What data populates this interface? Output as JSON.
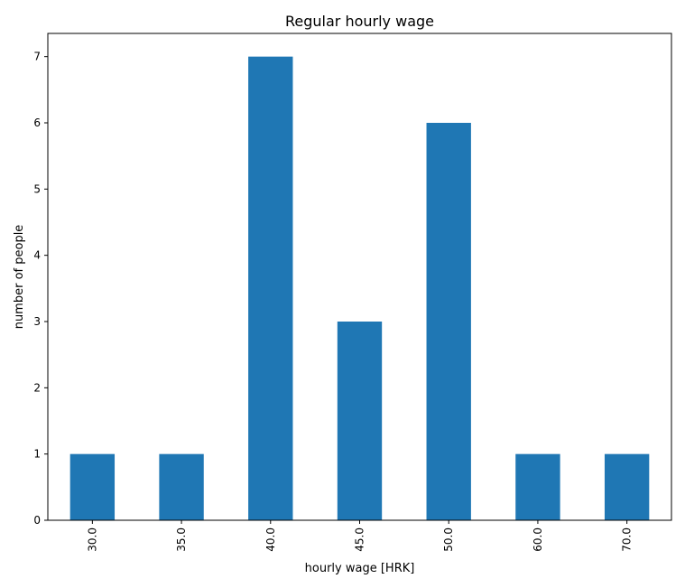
{
  "chart_data": {
    "type": "bar",
    "title": "Regular hourly wage",
    "xlabel": "hourly wage [HRK]",
    "ylabel": "number of people",
    "categories": [
      "30.0",
      "35.0",
      "40.0",
      "45.0",
      "50.0",
      "60.0",
      "70.0"
    ],
    "values": [
      1,
      1,
      7,
      3,
      6,
      1,
      1
    ],
    "ylim": [
      0,
      7.35
    ],
    "yticks": [
      "0",
      "1",
      "2",
      "3",
      "4",
      "5",
      "6",
      "7"
    ],
    "grid": false,
    "bar_color": "#1f77b4"
  }
}
